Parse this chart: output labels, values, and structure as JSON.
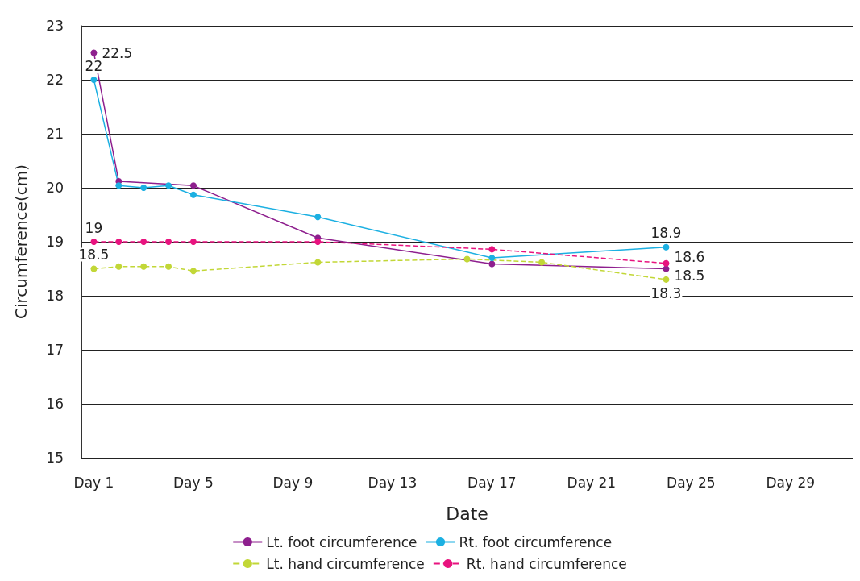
{
  "chart_data": {
    "type": "line",
    "xlabel": "Date",
    "ylabel": "Circumference(cm)",
    "categories": [
      "Day 1",
      null,
      null,
      null,
      "Day 5",
      null,
      null,
      null,
      "Day 9",
      null,
      null,
      null,
      "Day 13",
      null,
      null,
      null,
      "Day 17",
      null,
      null,
      null,
      "Day 21",
      null,
      null,
      null,
      "Day 25",
      null,
      null,
      null,
      "Day 29",
      null,
      null
    ],
    "ylim": [
      15,
      23
    ],
    "yticks": [
      15,
      16,
      17,
      18,
      19,
      20,
      21,
      22,
      23
    ],
    "grid": "y",
    "legend": "bottom",
    "marker": "circle",
    "series": [
      {
        "name": "Lt. foot circumference",
        "color": "#8e1f8e",
        "line_style": "solid",
        "values": [
          22.5,
          20.12,
          null,
          null,
          20.04,
          null,
          null,
          null,
          null,
          19.07,
          null,
          null,
          null,
          null,
          null,
          null,
          18.59,
          null,
          null,
          null,
          null,
          null,
          null,
          18.5,
          null,
          null,
          null,
          null,
          null,
          null,
          null
        ],
        "value_labels": [
          "22.5",
          null,
          null,
          null,
          null,
          null,
          null,
          null,
          null,
          null,
          null,
          null,
          null,
          null,
          null,
          null,
          null,
          null,
          null,
          null,
          null,
          null,
          null,
          "18.5",
          null,
          null,
          null,
          null,
          null,
          null,
          null
        ]
      },
      {
        "name": "Rt. foot circumference",
        "color": "#1cb0e2",
        "line_style": "solid",
        "values": [
          22,
          20.04,
          20,
          20.04,
          19.87,
          null,
          null,
          null,
          null,
          19.46,
          null,
          null,
          null,
          null,
          null,
          null,
          18.7,
          null,
          null,
          null,
          null,
          null,
          null,
          18.9,
          null,
          null,
          null,
          null,
          null,
          null,
          null
        ],
        "value_labels": [
          "22",
          null,
          null,
          null,
          null,
          null,
          null,
          null,
          null,
          null,
          null,
          null,
          null,
          null,
          null,
          null,
          null,
          null,
          null,
          null,
          null,
          null,
          null,
          "18.9",
          null,
          null,
          null,
          null,
          null,
          null,
          null
        ]
      },
      {
        "name": "Lt. hand circumference",
        "color": "#c2d737",
        "line_style": "dashed",
        "values": [
          18.5,
          18.54,
          18.54,
          18.54,
          18.46,
          null,
          null,
          null,
          null,
          18.62,
          null,
          null,
          null,
          null,
          null,
          18.68,
          null,
          null,
          18.62,
          null,
          null,
          null,
          null,
          18.3,
          null,
          null,
          null,
          null,
          null,
          null,
          null
        ],
        "value_labels": [
          "18.5",
          null,
          null,
          null,
          null,
          null,
          null,
          null,
          null,
          null,
          null,
          null,
          null,
          null,
          null,
          null,
          null,
          null,
          null,
          null,
          null,
          null,
          null,
          "18.3",
          null,
          null,
          null,
          null,
          null,
          null,
          null
        ]
      },
      {
        "name": "Rt. hand circumference",
        "color": "#e8137f",
        "line_style": "dashed",
        "values": [
          19,
          19,
          19,
          19,
          19,
          null,
          null,
          null,
          null,
          19,
          null,
          null,
          null,
          null,
          null,
          null,
          18.86,
          null,
          null,
          null,
          null,
          null,
          null,
          18.6,
          null,
          null,
          null,
          null,
          null,
          null,
          null
        ],
        "value_labels": [
          "19",
          null,
          null,
          null,
          null,
          null,
          null,
          null,
          null,
          null,
          null,
          null,
          null,
          null,
          null,
          null,
          null,
          null,
          null,
          null,
          null,
          null,
          null,
          "18.6",
          null,
          null,
          null,
          null,
          null,
          null,
          null
        ]
      }
    ]
  }
}
